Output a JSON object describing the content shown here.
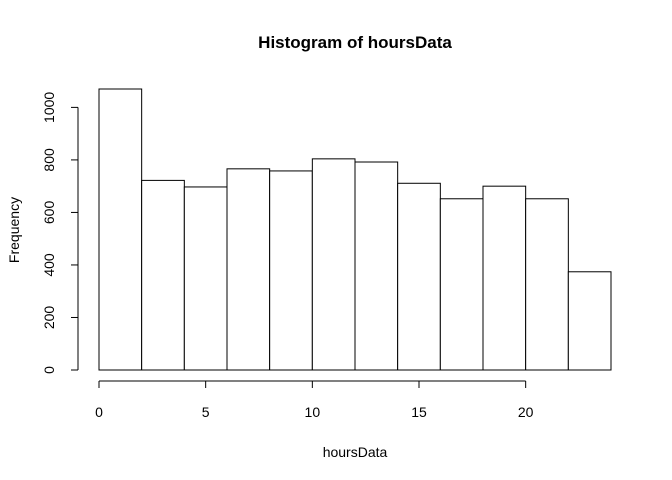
{
  "chart_data": {
    "type": "bar",
    "title": "Histogram of hoursData",
    "xlabel": "hoursData",
    "ylabel": "Frequency",
    "bins": [
      {
        "from": 0,
        "to": 2,
        "count": 1070
      },
      {
        "from": 2,
        "to": 4,
        "count": 722
      },
      {
        "from": 4,
        "to": 6,
        "count": 697
      },
      {
        "from": 6,
        "to": 8,
        "count": 766
      },
      {
        "from": 8,
        "to": 10,
        "count": 758
      },
      {
        "from": 10,
        "to": 12,
        "count": 804
      },
      {
        "from": 12,
        "to": 14,
        "count": 792
      },
      {
        "from": 14,
        "to": 16,
        "count": 711
      },
      {
        "from": 16,
        "to": 18,
        "count": 652
      },
      {
        "from": 18,
        "to": 20,
        "count": 700
      },
      {
        "from": 20,
        "to": 22,
        "count": 652
      },
      {
        "from": 22,
        "to": 24,
        "count": 374
      }
    ],
    "xlim": [
      0,
      24
    ],
    "ylim": [
      0,
      1070
    ],
    "xticks": [
      0,
      5,
      10,
      15,
      20
    ],
    "yticks": [
      0,
      200,
      400,
      600,
      800,
      1000
    ],
    "grid": false,
    "colors": {
      "bar_fill": "#ffffff",
      "bar_stroke": "#000000"
    }
  }
}
